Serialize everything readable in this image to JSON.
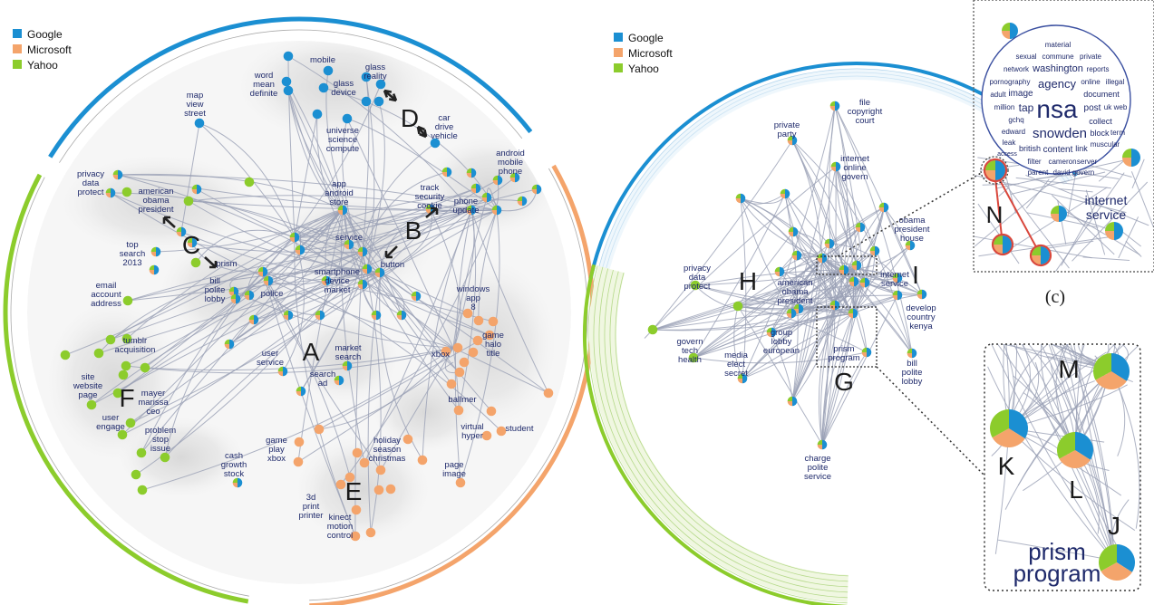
{
  "colors": {
    "google": "#1b8fd2",
    "microsoft": "#f4a46b",
    "yahoo": "#8ccc2c",
    "label": "#1f2a6b",
    "edge": "#9aa0b5"
  },
  "legend_left": {
    "items": [
      "Google",
      "Microsoft",
      "Yahoo"
    ]
  },
  "legend_right": {
    "items": [
      "Google",
      "Microsoft",
      "Yahoo"
    ]
  },
  "panel_a": {
    "region_letters": [
      "A",
      "B",
      "C",
      "D",
      "E",
      "F"
    ],
    "topics": [
      {
        "id": "t_map",
        "text": "map view street"
      },
      {
        "id": "t_mobile",
        "text": "mobile"
      },
      {
        "id": "t_word",
        "text": "word mean definite"
      },
      {
        "id": "t_glassr",
        "text": "glass reality"
      },
      {
        "id": "t_glassd",
        "text": "glass device"
      },
      {
        "id": "t_univ",
        "text": "universe science compute"
      },
      {
        "id": "t_car",
        "text": "car drive vehicle"
      },
      {
        "id": "t_privacy",
        "text": "privacy data protect"
      },
      {
        "id": "t_obama",
        "text": "american obama president"
      },
      {
        "id": "t_android",
        "text": "android mobile phone"
      },
      {
        "id": "t_app",
        "text": "app android store"
      },
      {
        "id": "t_track",
        "text": "track security cookie"
      },
      {
        "id": "t_phone",
        "text": "phone update"
      },
      {
        "id": "t_top",
        "text": "top search 2013"
      },
      {
        "id": "t_service",
        "text": "service"
      },
      {
        "id": "t_prism",
        "text": "prism"
      },
      {
        "id": "t_button",
        "text": "button"
      },
      {
        "id": "t_smart",
        "text": "smartphone device market"
      },
      {
        "id": "t_bill",
        "text": "bill polite lobby"
      },
      {
        "id": "t_police",
        "text": "police"
      },
      {
        "id": "t_email",
        "text": "email account address"
      },
      {
        "id": "t_windows",
        "text": "windows app 8"
      },
      {
        "id": "t_tumblr",
        "text": "tumblr acquisition"
      },
      {
        "id": "t_game",
        "text": "game halo title"
      },
      {
        "id": "t_xbox",
        "text": "xbox"
      },
      {
        "id": "t_market",
        "text": "market search"
      },
      {
        "id": "t_user",
        "text": "user service"
      },
      {
        "id": "t_site",
        "text": "site website page"
      },
      {
        "id": "t_searchad",
        "text": "search ad"
      },
      {
        "id": "t_mayer",
        "text": "mayer marissa ceo"
      },
      {
        "id": "t_ballmer",
        "text": "ballmer"
      },
      {
        "id": "t_engage",
        "text": "user engage"
      },
      {
        "id": "t_virtual",
        "text": "virtual hyper"
      },
      {
        "id": "t_student",
        "text": "student"
      },
      {
        "id": "t_problem",
        "text": "problem stop issue"
      },
      {
        "id": "t_gameplay",
        "text": "game play xbox"
      },
      {
        "id": "t_holiday",
        "text": "holiday season christmas"
      },
      {
        "id": "t_page",
        "text": "page image"
      },
      {
        "id": "t_cash",
        "text": "cash growth stock"
      },
      {
        "id": "t_3d",
        "text": "3d print printer"
      },
      {
        "id": "t_kinect",
        "text": "kinect motion control"
      }
    ]
  },
  "panel_b": {
    "region_letters": [
      "G",
      "H",
      "I"
    ],
    "topics": [
      {
        "id": "b_file",
        "text": "file copyright court"
      },
      {
        "id": "b_private",
        "text": "private party"
      },
      {
        "id": "b_internet",
        "text": "internet online govern"
      },
      {
        "id": "b_obama2",
        "text": "obama president house"
      },
      {
        "id": "b_privacy",
        "text": "privacy data protect"
      },
      {
        "id": "b_american",
        "text": "american obama president"
      },
      {
        "id": "b_iservice",
        "text": "internet service"
      },
      {
        "id": "b_develop",
        "text": "develop country kenya"
      },
      {
        "id": "b_govern",
        "text": "govern tech health"
      },
      {
        "id": "b_group",
        "text": "group lobby european"
      },
      {
        "id": "b_media",
        "text": "media elect secret"
      },
      {
        "id": "b_prism",
        "text": "prism program"
      },
      {
        "id": "b_bill",
        "text": "bill polite lobby"
      },
      {
        "id": "b_charge",
        "text": "charge polite service"
      }
    ]
  },
  "panel_c": {
    "caption": "(c)",
    "letter": "N",
    "topic_label": "internet service",
    "word_cloud": [
      "material",
      "sexual",
      "commune",
      "private",
      "network",
      "washington",
      "reports",
      "pornography",
      "agency",
      "online",
      "illegal",
      "adult",
      "image",
      "document",
      "million",
      "tap",
      "nsa",
      "post",
      "uk",
      "web",
      "gchq",
      "collect",
      "edward",
      "snowden",
      "block",
      "term",
      "leak",
      "british",
      "content",
      "link",
      "muscular",
      "access",
      "filter",
      "cameron",
      "server",
      "parent",
      "david",
      "govern"
    ]
  },
  "panel_zoom": {
    "letters": [
      "M",
      "K",
      "L",
      "J"
    ],
    "topic_label": "prism program"
  }
}
